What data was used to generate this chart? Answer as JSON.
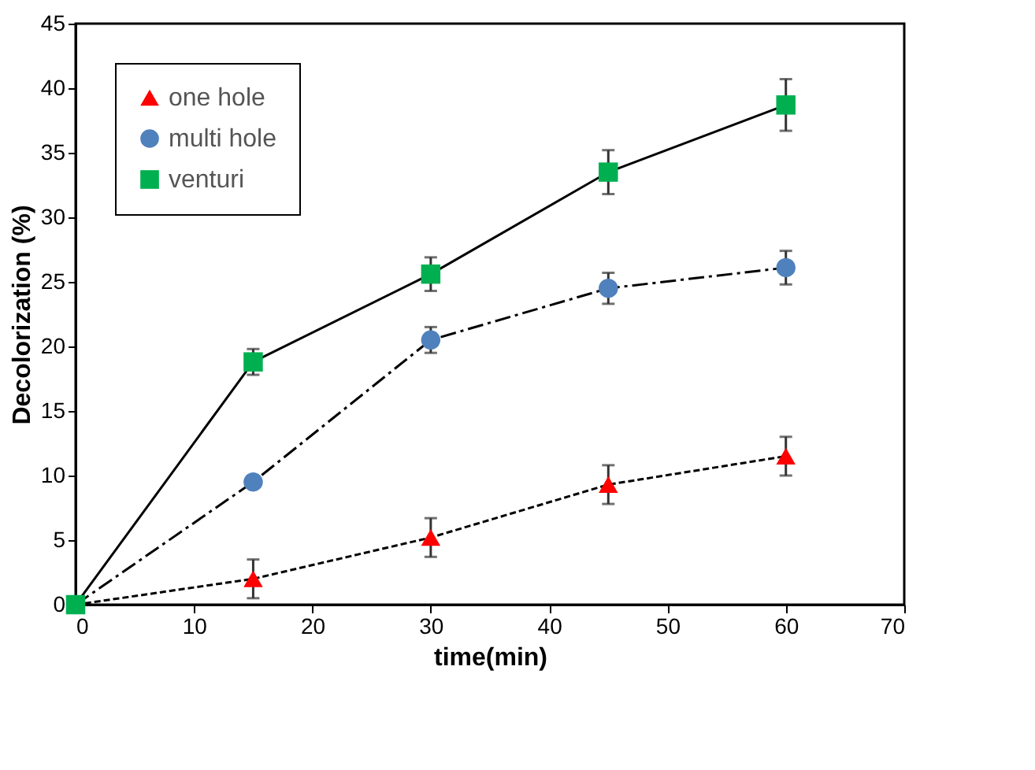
{
  "chart_data": {
    "type": "line",
    "xlabel": "time(min)",
    "ylabel": "Decolorization (%)",
    "x": [
      0,
      15,
      30,
      45,
      60
    ],
    "series": [
      {
        "name": "one hole",
        "color": "#ff0000",
        "marker": "triangle",
        "line_style": "dotted",
        "values": [
          0,
          2.0,
          5.2,
          9.3,
          11.5
        ],
        "errors": [
          null,
          1.5,
          1.5,
          1.5,
          1.5
        ]
      },
      {
        "name": "multi hole",
        "color": "#4f81bd",
        "marker": "circle",
        "line_style": "dashed",
        "values": [
          0,
          9.5,
          20.5,
          24.5,
          26.1
        ],
        "errors": [
          null,
          null,
          1.0,
          1.2,
          1.3
        ]
      },
      {
        "name": "venturi",
        "color": "#00b050",
        "marker": "square",
        "line_style": "solid",
        "values": [
          0,
          18.8,
          25.6,
          33.5,
          38.7
        ],
        "errors": [
          null,
          1.0,
          1.3,
          1.7,
          2.0
        ]
      }
    ],
    "xlim": [
      0,
      70
    ],
    "xticks": [
      0,
      10,
      20,
      30,
      40,
      50,
      60,
      70
    ],
    "ylim": [
      0,
      45
    ],
    "yticks": [
      0,
      5,
      10,
      15,
      20,
      25,
      30,
      35,
      40,
      45
    ],
    "grid": false,
    "legend": "top left"
  }
}
